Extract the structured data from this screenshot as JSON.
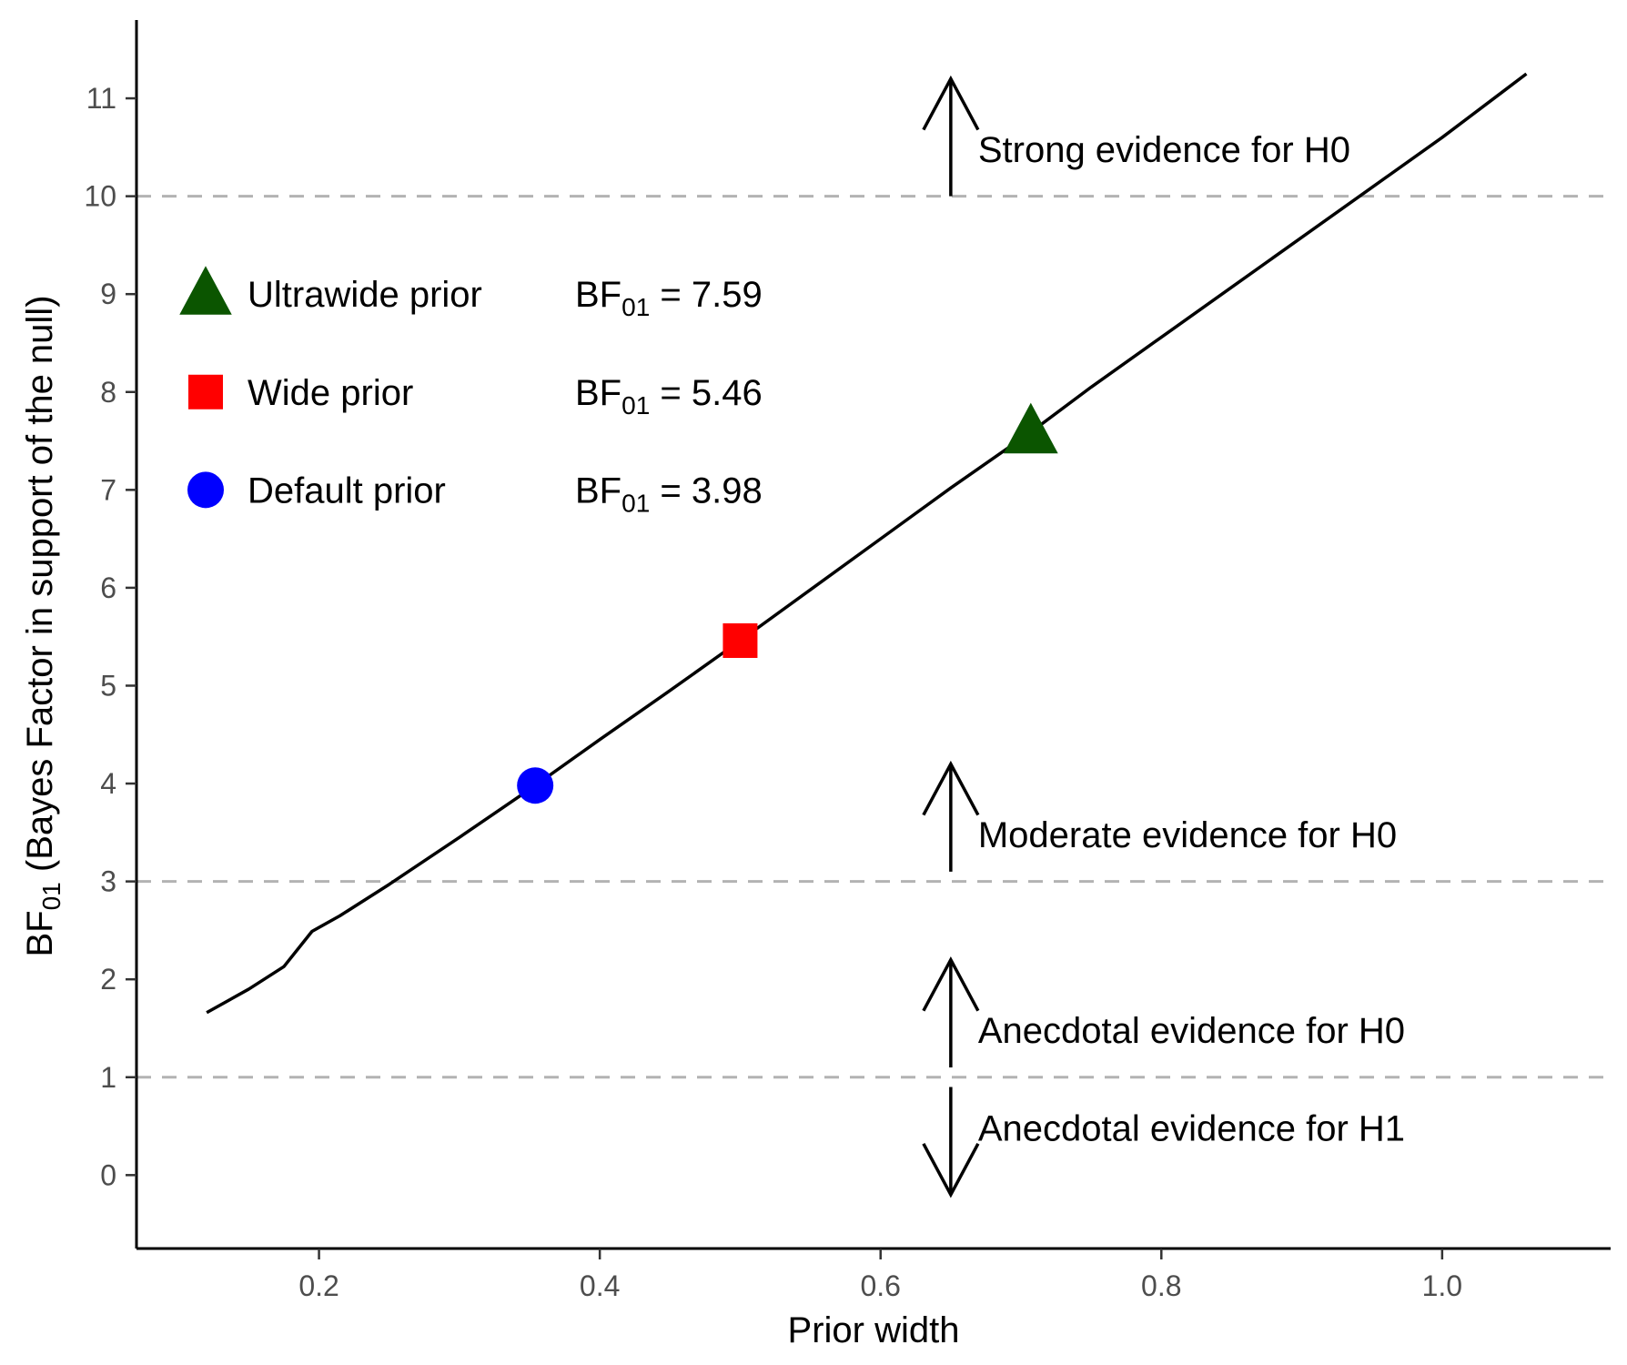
{
  "chart_data": {
    "type": "line",
    "title": "",
    "xlabel": "Prior width",
    "ylabel": {
      "main": "BF",
      "sub": "01",
      "rest": " (Bayes Factor in support of the null)"
    },
    "xlim": [
      0.07,
      1.12
    ],
    "ylim": [
      -0.75,
      11.8
    ],
    "x_ticks": [
      0.2,
      0.4,
      0.6,
      0.8,
      1.0
    ],
    "x_tick_labels": [
      "0.2",
      "0.4",
      "0.6",
      "0.8",
      "1.0"
    ],
    "y_ticks": [
      0,
      1,
      2,
      3,
      4,
      5,
      6,
      7,
      8,
      9,
      10,
      11
    ],
    "y_tick_labels": [
      "0",
      "1",
      "2",
      "3",
      "4",
      "5",
      "6",
      "7",
      "8",
      "9",
      "10",
      "11"
    ],
    "grid": false,
    "line_color": "#000000",
    "series": [
      {
        "x": [
          0.12,
          0.15,
          0.175,
          0.195,
          0.215,
          0.25,
          0.3,
          0.354,
          0.4,
          0.45,
          0.5,
          0.55,
          0.6,
          0.65,
          0.707,
          0.75,
          0.8,
          0.85,
          0.9,
          0.95,
          1.0,
          1.06
        ],
        "y": [
          1.66,
          1.9,
          2.13,
          2.49,
          2.65,
          2.97,
          3.45,
          3.98,
          4.45,
          4.95,
          5.46,
          5.98,
          6.5,
          7.02,
          7.59,
          8.05,
          8.56,
          9.07,
          9.58,
          10.09,
          10.6,
          11.25
        ]
      }
    ],
    "reference_lines": [
      {
        "y": 10,
        "color": "#b3b3b3"
      },
      {
        "y": 3,
        "color": "#b3b3b3"
      },
      {
        "y": 1,
        "color": "#b3b3b3"
      }
    ],
    "points": [
      {
        "name": "Ultrawide prior",
        "x": 0.707,
        "y": 7.59,
        "shape": "triangle",
        "color": "#0b5500",
        "bf_label": "BF",
        "bf_sub": "01",
        "bf_value": " = 7.59"
      },
      {
        "name": "Wide prior",
        "x": 0.5,
        "y": 5.46,
        "shape": "square",
        "color": "#ff0000",
        "bf_label": "BF",
        "bf_sub": "01",
        "bf_value": " = 5.46"
      },
      {
        "name": "Default prior",
        "x": 0.354,
        "y": 3.98,
        "shape": "circle",
        "color": "#0000ff",
        "bf_label": "BF",
        "bf_sub": "01",
        "bf_value": " = 3.98"
      }
    ],
    "annotations": [
      {
        "text": "Strong evidence for H0",
        "arrow_x": 0.65,
        "arrow_from": 10.0,
        "arrow_to": 11.2,
        "text_y": 10.48
      },
      {
        "text": "Moderate evidence for H0",
        "arrow_x": 0.65,
        "arrow_from": 3.1,
        "arrow_to": 4.2,
        "text_y": 3.48
      },
      {
        "text": "Anecdotal evidence for H0",
        "arrow_x": 0.65,
        "arrow_from": 1.1,
        "arrow_to": 2.2,
        "text_y": 1.48
      },
      {
        "text": "Anecdotal evidence for H1",
        "arrow_x": 0.65,
        "arrow_from": 0.9,
        "arrow_to": -0.2,
        "text_y": 0.48
      }
    ],
    "legend_placement": "upper-left inside"
  }
}
